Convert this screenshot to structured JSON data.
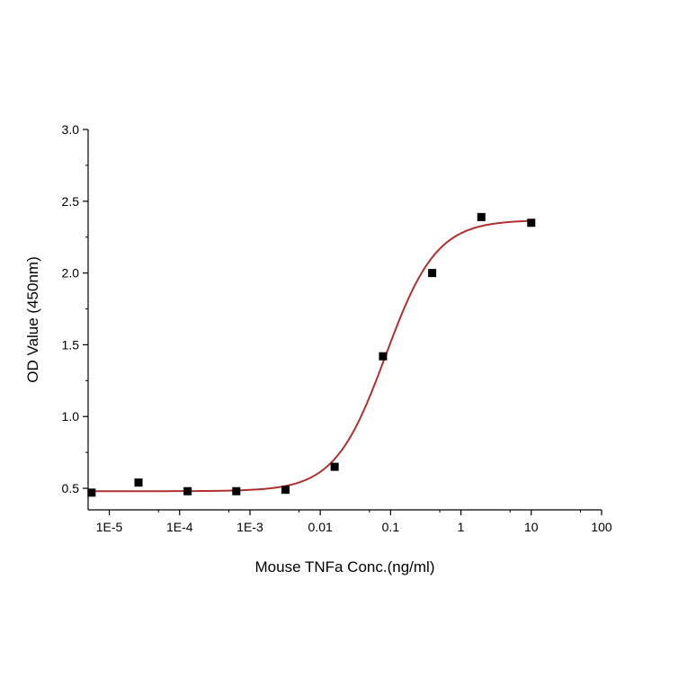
{
  "chart_data": {
    "type": "scatter",
    "title": "",
    "xlabel": "Mouse TNFa Conc.(ng/ml)",
    "ylabel": "OD Value (450nm)",
    "x_scale": "log",
    "xlim": [
      5e-06,
      100
    ],
    "ylim": [
      0.35,
      3.0
    ],
    "grid": false,
    "legend": "none",
    "x_ticks": [
      {
        "value": 1e-05,
        "label": "1E-5"
      },
      {
        "value": 0.0001,
        "label": "1E-4"
      },
      {
        "value": 0.001,
        "label": "1E-3"
      },
      {
        "value": 0.01,
        "label": "0.01"
      },
      {
        "value": 0.1,
        "label": "0.1"
      },
      {
        "value": 1,
        "label": "1"
      },
      {
        "value": 10,
        "label": "10"
      },
      {
        "value": 100,
        "label": "100"
      }
    ],
    "y_ticks": [
      {
        "value": 0.5,
        "label": "0.5"
      },
      {
        "value": 1.0,
        "label": "1.0"
      },
      {
        "value": 1.5,
        "label": "1.5"
      },
      {
        "value": 2.0,
        "label": "2.0"
      },
      {
        "value": 2.5,
        "label": "2.5"
      },
      {
        "value": 3.0,
        "label": "3.0"
      }
    ],
    "series": [
      {
        "type": "scatter",
        "marker": "square",
        "color": "#000000",
        "x": [
          5.6e-06,
          2.6e-05,
          0.00013,
          0.00064,
          0.0032,
          0.016,
          0.078,
          0.39,
          1.95,
          10
        ],
        "y": [
          0.47,
          0.54,
          0.48,
          0.48,
          0.49,
          0.65,
          1.42,
          2.0,
          2.39,
          2.35
        ]
      },
      {
        "type": "line",
        "color": "#b03030",
        "fit": {
          "bottom": 0.48,
          "top": 2.37,
          "ec50": 0.085,
          "hill": 1.2
        }
      }
    ]
  }
}
